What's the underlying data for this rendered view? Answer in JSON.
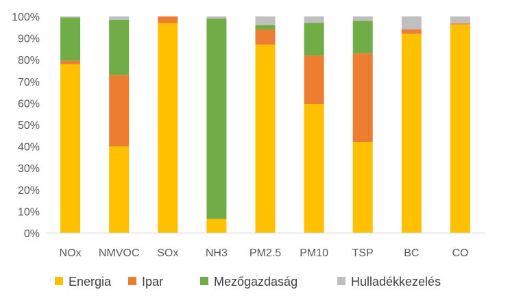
{
  "chart_data": {
    "type": "bar",
    "stacked": true,
    "categories": [
      "NOx",
      "NMVOC",
      "SOx",
      "NH3",
      "PM2.5",
      "PM10",
      "TSP",
      "BC",
      "CO"
    ],
    "series": [
      {
        "name": "Energia",
        "color": "#FFC000",
        "values": [
          78,
          40,
          97,
          6.5,
          87,
          59.5,
          42,
          92,
          96.3
        ]
      },
      {
        "name": "Ipar",
        "color": "#ED7D31",
        "values": [
          1.5,
          33,
          3,
          0,
          7,
          22.5,
          41,
          2,
          0.5
        ]
      },
      {
        "name": "Mezőgazdaság",
        "color": "#70AD47",
        "values": [
          20,
          25.5,
          0,
          92.5,
          2,
          15,
          15,
          0,
          0
        ]
      },
      {
        "name": "Hulladékkezelés",
        "color": "#BFBFBF",
        "values": [
          0.5,
          1.5,
          0,
          1,
          4,
          3,
          2,
          6,
          3.2
        ]
      }
    ],
    "yticks": [
      "0%",
      "10%",
      "20%",
      "30%",
      "40%",
      "50%",
      "60%",
      "70%",
      "80%",
      "90%",
      "100%"
    ],
    "ylim": [
      0,
      100
    ],
    "legend_position": "bottom",
    "grid": false
  }
}
